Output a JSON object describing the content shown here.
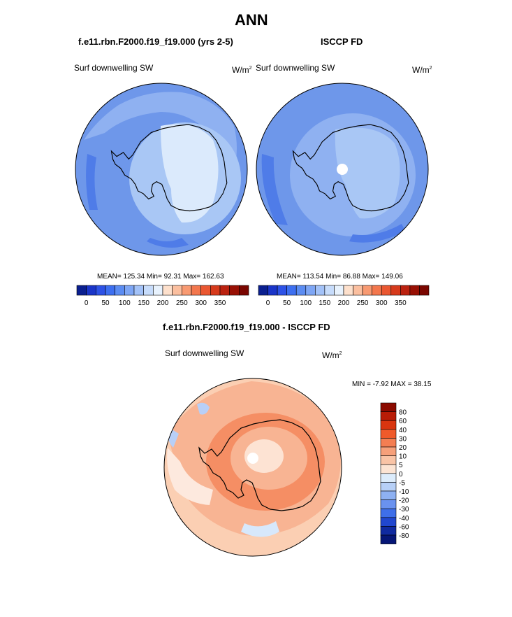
{
  "figure": {
    "title": "ANN",
    "left_panel_title": "f.e11.rbn.F2000.f19_f19.000 (yrs 2-5)",
    "right_panel_title": "ISCCP FD",
    "diff_title": "f.e11.rbn.F2000.f19_f19.000 - ISCCP FD"
  },
  "panels": {
    "left": {
      "variable": "Surf downwelling SW",
      "units": "W/m",
      "units_sup": "2",
      "stats": "MEAN= 125.34  Min=  92.31  Max= 162.63"
    },
    "right": {
      "variable": "Surf downwelling SW",
      "units": "W/m",
      "units_sup": "2",
      "stats": "MEAN= 113.54  Min=  86.88  Max= 149.06"
    },
    "diff": {
      "variable": "Surf downwelling SW",
      "units": "W/m",
      "units_sup": "2",
      "stats": "MIN =  -7.92 MAX =  38.15"
    }
  },
  "chart_data": [
    {
      "type": "heatmap",
      "title": "f.e11.rbn.F2000.f19_f19.000 (yrs 2-5)",
      "subtitle": "Surf downwelling SW",
      "projection": "south polar stereographic",
      "units": "W/m2",
      "mean": 125.34,
      "min": 92.31,
      "max": 162.63,
      "colorbar": {
        "tick_labels": [
          "0",
          "50",
          "100",
          "150",
          "200",
          "250",
          "300",
          "350"
        ],
        "colors": [
          "#0a1f8f",
          "#1a35c8",
          "#2d52e6",
          "#3d6ff0",
          "#5b8cf2",
          "#7ea6f5",
          "#a3c2f8",
          "#c7dcfb",
          "#e8f2fd",
          "#fde0cc",
          "#fbbf9f",
          "#f89a72",
          "#f3774d",
          "#ea5731",
          "#d63a1c",
          "#bb2210",
          "#981004",
          "#7a0600"
        ]
      }
    },
    {
      "type": "heatmap",
      "title": "ISCCP FD",
      "subtitle": "Surf downwelling SW",
      "projection": "south polar stereographic",
      "units": "W/m2",
      "mean": 113.54,
      "min": 86.88,
      "max": 149.06,
      "colorbar": {
        "tick_labels": [
          "0",
          "50",
          "100",
          "150",
          "200",
          "250",
          "300",
          "350"
        ],
        "colors": [
          "#0a1f8f",
          "#1a35c8",
          "#2d52e6",
          "#3d6ff0",
          "#5b8cf2",
          "#7ea6f5",
          "#a3c2f8",
          "#c7dcfb",
          "#e8f2fd",
          "#fde0cc",
          "#fbbf9f",
          "#f89a72",
          "#f3774d",
          "#ea5731",
          "#d63a1c",
          "#bb2210",
          "#981004",
          "#7a0600"
        ]
      }
    },
    {
      "type": "heatmap",
      "title": "f.e11.rbn.F2000.f19_f19.000 - ISCCP FD",
      "subtitle": "Surf downwelling SW",
      "projection": "south polar stereographic",
      "units": "W/m2",
      "min": -7.92,
      "max": 38.15,
      "colorbar": {
        "levels": [
          "80",
          "60",
          "40",
          "30",
          "20",
          "10",
          "5",
          "0",
          "-5",
          "-10",
          "-20",
          "-30",
          "-40",
          "-60",
          "-80"
        ],
        "colors": [
          "#8b0a00",
          "#b81c06",
          "#d9350f",
          "#ef5a2a",
          "#f47e52",
          "#f6a07a",
          "#f9c4a6",
          "#fce4d3",
          "#dcecfb",
          "#b7d0f7",
          "#8eb1f2",
          "#6a92ef",
          "#3f6fe9",
          "#2147cf",
          "#102aa0",
          "#061677"
        ]
      }
    }
  ]
}
